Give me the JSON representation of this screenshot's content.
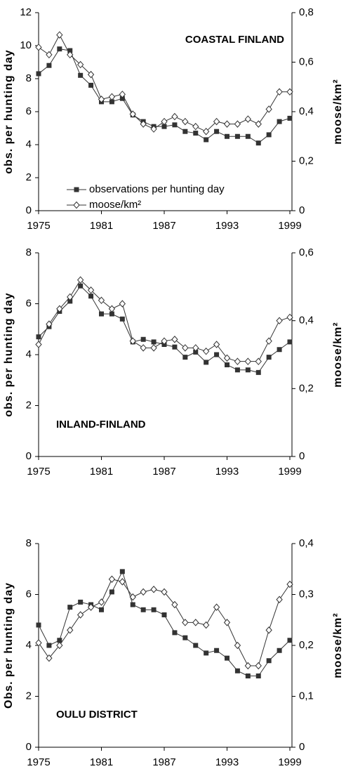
{
  "chart_data": [
    {
      "type": "line",
      "title": "COASTAL FINLAND",
      "ylabel": "obs. per hunting day",
      "y2label": "moose/km²",
      "x": [
        1975,
        1976,
        1977,
        1978,
        1979,
        1980,
        1981,
        1982,
        1983,
        1984,
        1985,
        1986,
        1987,
        1988,
        1989,
        1990,
        1991,
        1992,
        1993,
        1994,
        1995,
        1996,
        1997,
        1998,
        1999
      ],
      "xlim": [
        1975,
        1999
      ],
      "xticks": [
        1975,
        1981,
        1987,
        1993,
        1999
      ],
      "ylim": [
        0,
        12
      ],
      "yticks": [
        0,
        2,
        4,
        6,
        8,
        10,
        12
      ],
      "y2lim": [
        0,
        0.8
      ],
      "y2ticks": [
        0,
        {
          "value": 0.2,
          "label": "0,2"
        },
        {
          "value": 0.4,
          "label": "0,4"
        },
        {
          "value": 0.6,
          "label": "0,6"
        },
        {
          "value": 0.8,
          "label": "0,8"
        }
      ],
      "legend": "center left",
      "series": [
        {
          "name": "observations per hunting day",
          "color": "#333333",
          "marker": "square",
          "values": [
            8.3,
            8.8,
            9.8,
            9.7,
            8.2,
            7.6,
            6.6,
            6.6,
            6.8,
            5.8,
            5.4,
            5.1,
            5.1,
            5.2,
            4.8,
            4.7,
            4.3,
            4.8,
            4.5,
            4.5,
            4.5,
            4.1,
            4.6,
            5.4,
            5.6
          ]
        },
        {
          "name": "moose/km²",
          "color": "#333333",
          "marker": "diamond",
          "axis": "y2",
          "values": [
            0.66,
            0.63,
            0.71,
            0.63,
            0.59,
            0.55,
            0.45,
            0.46,
            0.47,
            0.39,
            0.35,
            0.33,
            0.36,
            0.38,
            0.36,
            0.34,
            0.32,
            0.36,
            0.35,
            0.35,
            0.37,
            0.35,
            0.41,
            0.48,
            0.48
          ]
        }
      ]
    },
    {
      "type": "line",
      "title": "INLAND-FINLAND",
      "ylabel": "obs. per hunting day",
      "y2label": "moose/km²",
      "x": [
        1975,
        1976,
        1977,
        1978,
        1979,
        1980,
        1981,
        1982,
        1983,
        1984,
        1985,
        1986,
        1987,
        1988,
        1989,
        1990,
        1991,
        1992,
        1993,
        1994,
        1995,
        1996,
        1997,
        1998,
        1999
      ],
      "xlim": [
        1975,
        1999
      ],
      "xticks": [
        1975,
        1981,
        1987,
        1993,
        1999
      ],
      "ylim": [
        0,
        8
      ],
      "yticks": [
        0,
        2,
        4,
        6,
        8
      ],
      "y2lim": [
        0,
        0.6
      ],
      "y2ticks": [
        0,
        {
          "value": 0.2,
          "label": "0,2"
        },
        {
          "value": 0.4,
          "label": "0,4"
        },
        {
          "value": 0.6,
          "label": "0,6"
        }
      ],
      "series": [
        {
          "color": "#333333",
          "marker": "square",
          "values": [
            4.7,
            5.1,
            5.7,
            6.1,
            6.7,
            6.3,
            5.6,
            5.6,
            5.4,
            4.5,
            4.6,
            4.5,
            4.4,
            4.3,
            3.9,
            4.1,
            3.7,
            4.0,
            3.6,
            3.4,
            3.4,
            3.3,
            3.9,
            4.2,
            4.5
          ]
        },
        {
          "color": "#333333",
          "marker": "diamond",
          "axis": "y2",
          "values": [
            0.33,
            0.39,
            0.435,
            0.47,
            0.52,
            0.49,
            0.46,
            0.435,
            0.45,
            0.34,
            0.32,
            0.32,
            0.34,
            0.345,
            0.32,
            0.32,
            0.31,
            0.33,
            0.29,
            0.28,
            0.28,
            0.28,
            0.34,
            0.4,
            0.41
          ]
        }
      ]
    },
    {
      "type": "line",
      "title": "OULU DISTRICT",
      "ylabel": "Obs. per hunting day",
      "y2label": "moose/km²",
      "x": [
        1975,
        1976,
        1977,
        1978,
        1979,
        1980,
        1981,
        1982,
        1983,
        1984,
        1985,
        1986,
        1987,
        1988,
        1989,
        1990,
        1991,
        1992,
        1993,
        1994,
        1995,
        1996,
        1997,
        1998,
        1999
      ],
      "xlim": [
        1975,
        1999
      ],
      "xticks": [
        1975,
        1981,
        1987,
        1993,
        1999
      ],
      "ylim": [
        0,
        8
      ],
      "yticks": [
        0,
        2,
        4,
        6,
        8
      ],
      "y2lim": [
        0,
        0.4
      ],
      "y2ticks": [
        0,
        {
          "value": 0.1,
          "label": "0,1"
        },
        {
          "value": 0.2,
          "label": "0,2"
        },
        {
          "value": 0.3,
          "label": "0,3"
        },
        {
          "value": 0.4,
          "label": "0,4"
        }
      ],
      "series": [
        {
          "color": "#333333",
          "marker": "square",
          "values": [
            4.8,
            4.0,
            4.2,
            5.5,
            5.7,
            5.6,
            5.4,
            6.1,
            6.9,
            5.6,
            5.4,
            5.4,
            5.2,
            4.5,
            4.3,
            4.0,
            3.7,
            3.8,
            3.5,
            3.0,
            2.8,
            2.8,
            3.4,
            3.8,
            4.2
          ]
        },
        {
          "color": "#333333",
          "marker": "diamond",
          "axis": "y2",
          "values": [
            0.205,
            0.175,
            0.2,
            0.23,
            0.26,
            0.275,
            0.285,
            0.33,
            0.325,
            0.295,
            0.305,
            0.31,
            0.305,
            0.28,
            0.245,
            0.245,
            0.24,
            0.275,
            0.245,
            0.2,
            0.16,
            0.16,
            0.23,
            0.29,
            0.32
          ]
        }
      ]
    }
  ]
}
